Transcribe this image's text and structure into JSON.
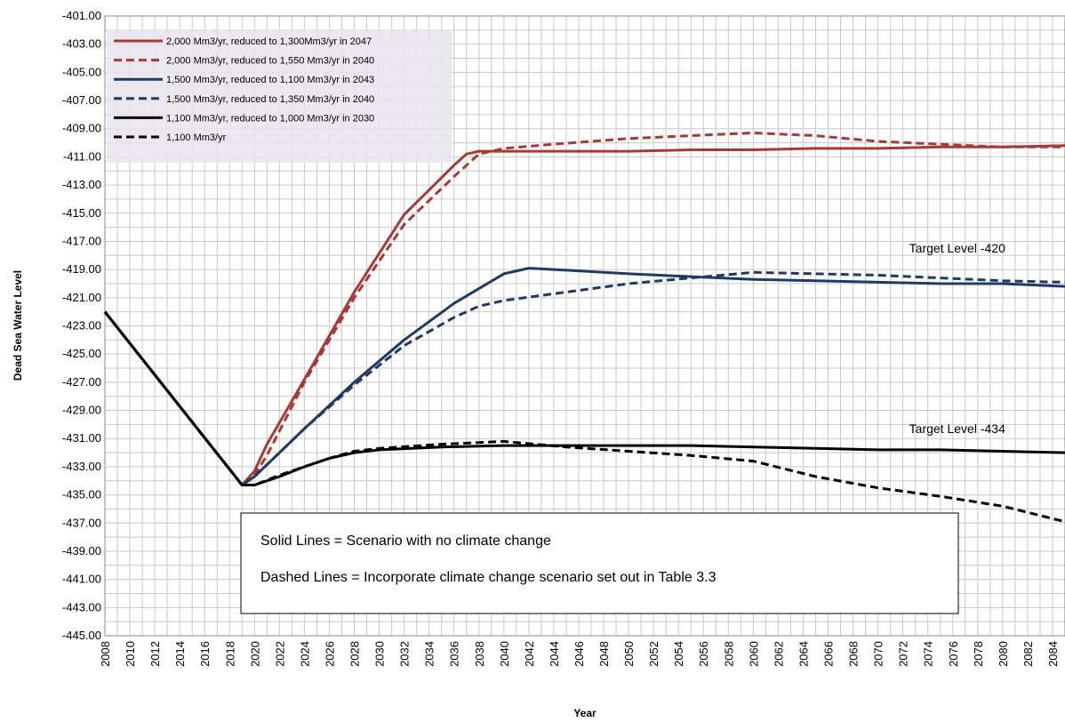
{
  "chart_data": {
    "type": "line",
    "title": "",
    "xlabel": "Year",
    "ylabel": "Dead Sea Water Level",
    "xlim": [
      2008,
      2085
    ],
    "ylim": [
      -445,
      -401
    ],
    "x_ticks": [
      2008,
      2010,
      2012,
      2014,
      2016,
      2018,
      2020,
      2022,
      2024,
      2026,
      2028,
      2030,
      2032,
      2034,
      2036,
      2038,
      2040,
      2042,
      2044,
      2046,
      2048,
      2050,
      2052,
      2054,
      2056,
      2058,
      2060,
      2062,
      2064,
      2066,
      2068,
      2070,
      2072,
      2074,
      2076,
      2078,
      2080,
      2082,
      2084
    ],
    "y_ticks": [
      "-401.00",
      "-403.00",
      "-405.00",
      "-407.00",
      "-409.00",
      "-411.00",
      "-413.00",
      "-415.00",
      "-417.00",
      "-419.00",
      "-421.00",
      "-423.00",
      "-425.00",
      "-427.00",
      "-429.00",
      "-431.00",
      "-433.00",
      "-435.00",
      "-437.00",
      "-439.00",
      "-441.00",
      "-443.00",
      "-445.00"
    ],
    "grid": true,
    "legend_position": "top-left",
    "series": [
      {
        "name": "2,000 Mm3/yr, reduced to 1,300Mm3/yr in 2047",
        "color": "#a83a36",
        "dash": "solid",
        "points": [
          [
            2008,
            -422
          ],
          [
            2019,
            -434.3
          ],
          [
            2020,
            -433.3
          ],
          [
            2021,
            -431.4
          ],
          [
            2024,
            -426.8
          ],
          [
            2028,
            -420.6
          ],
          [
            2032,
            -415.1
          ],
          [
            2036,
            -411.6
          ],
          [
            2037,
            -410.8
          ],
          [
            2038,
            -410.6
          ],
          [
            2040,
            -410.6
          ],
          [
            2046,
            -410.6
          ],
          [
            2050,
            -410.6
          ],
          [
            2055,
            -410.5
          ],
          [
            2060,
            -410.5
          ],
          [
            2065,
            -410.4
          ],
          [
            2070,
            -410.4
          ],
          [
            2075,
            -410.3
          ],
          [
            2080,
            -410.3
          ],
          [
            2085,
            -410.2
          ]
        ]
      },
      {
        "name": "2,000 Mm3/yr, reduced to 1,550 Mm3/yr in 2040",
        "color": "#a83a36",
        "dash": "dashed",
        "points": [
          [
            2008,
            -422
          ],
          [
            2019,
            -434.3
          ],
          [
            2020,
            -433.6
          ],
          [
            2021,
            -432.2
          ],
          [
            2024,
            -427.0
          ],
          [
            2028,
            -421.0
          ],
          [
            2032,
            -415.8
          ],
          [
            2036,
            -412.4
          ],
          [
            2038,
            -410.8
          ],
          [
            2040,
            -410.4
          ],
          [
            2044,
            -410.1
          ],
          [
            2050,
            -409.7
          ],
          [
            2055,
            -409.5
          ],
          [
            2060,
            -409.3
          ],
          [
            2065,
            -409.5
          ],
          [
            2070,
            -409.9
          ],
          [
            2075,
            -410.1
          ],
          [
            2080,
            -410.3
          ],
          [
            2085,
            -410.3
          ]
        ]
      },
      {
        "name": "1,500 Mm3/yr, reduced to 1,100 Mm3/yr in 2043",
        "color": "#1f3a64",
        "dash": "solid",
        "points": [
          [
            2008,
            -422
          ],
          [
            2019,
            -434.3
          ],
          [
            2020,
            -433.7
          ],
          [
            2022,
            -432.0
          ],
          [
            2024,
            -430.3
          ],
          [
            2028,
            -427.0
          ],
          [
            2032,
            -424.0
          ],
          [
            2036,
            -421.4
          ],
          [
            2040,
            -419.3
          ],
          [
            2042,
            -418.9
          ],
          [
            2044,
            -419.0
          ],
          [
            2050,
            -419.3
          ],
          [
            2055,
            -419.5
          ],
          [
            2060,
            -419.7
          ],
          [
            2065,
            -419.8
          ],
          [
            2070,
            -419.9
          ],
          [
            2075,
            -420.0
          ],
          [
            2080,
            -420.0
          ],
          [
            2085,
            -420.2
          ]
        ]
      },
      {
        "name": "1,500 Mm3/yr, reduced to 1,350 Mm3/yr in 2040",
        "color": "#1f3a64",
        "dash": "dashed",
        "points": [
          [
            2008,
            -422
          ],
          [
            2019,
            -434.3
          ],
          [
            2020,
            -433.7
          ],
          [
            2022,
            -432.0
          ],
          [
            2024,
            -430.3
          ],
          [
            2028,
            -427.2
          ],
          [
            2032,
            -424.4
          ],
          [
            2036,
            -422.4
          ],
          [
            2038,
            -421.6
          ],
          [
            2040,
            -421.2
          ],
          [
            2045,
            -420.6
          ],
          [
            2050,
            -420.0
          ],
          [
            2055,
            -419.6
          ],
          [
            2060,
            -419.2
          ],
          [
            2065,
            -419.3
          ],
          [
            2070,
            -419.4
          ],
          [
            2075,
            -419.6
          ],
          [
            2080,
            -419.8
          ],
          [
            2085,
            -419.9
          ]
        ]
      },
      {
        "name": "1,100 Mm3/yr, reduced to 1,000 Mm3/yr in 2030",
        "color": "#000000",
        "dash": "solid",
        "points": [
          [
            2008,
            -422
          ],
          [
            2019,
            -434.3
          ],
          [
            2020,
            -434.3
          ],
          [
            2022,
            -433.7
          ],
          [
            2024,
            -433.0
          ],
          [
            2026,
            -432.4
          ],
          [
            2028,
            -432.0
          ],
          [
            2030,
            -431.8
          ],
          [
            2035,
            -431.6
          ],
          [
            2040,
            -431.5
          ],
          [
            2045,
            -431.5
          ],
          [
            2050,
            -431.5
          ],
          [
            2055,
            -431.5
          ],
          [
            2060,
            -431.6
          ],
          [
            2065,
            -431.7
          ],
          [
            2070,
            -431.8
          ],
          [
            2075,
            -431.8
          ],
          [
            2080,
            -431.9
          ],
          [
            2085,
            -432.0
          ]
        ]
      },
      {
        "name": "1,100 Mm3/yr",
        "color": "#000000",
        "dash": "dashed",
        "points": [
          [
            2008,
            -422
          ],
          [
            2019,
            -434.3
          ],
          [
            2020,
            -434.3
          ],
          [
            2022,
            -433.6
          ],
          [
            2024,
            -433.0
          ],
          [
            2026,
            -432.4
          ],
          [
            2028,
            -431.9
          ],
          [
            2030,
            -431.7
          ],
          [
            2035,
            -431.4
          ],
          [
            2040,
            -431.2
          ],
          [
            2045,
            -431.6
          ],
          [
            2050,
            -431.9
          ],
          [
            2055,
            -432.2
          ],
          [
            2060,
            -432.6
          ],
          [
            2065,
            -433.7
          ],
          [
            2070,
            -434.5
          ],
          [
            2075,
            -435.1
          ],
          [
            2080,
            -435.8
          ],
          [
            2085,
            -436.9
          ]
        ]
      }
    ],
    "annotations": [
      {
        "text": "Target Level -420",
        "x": 2072.5,
        "y": -417.8
      },
      {
        "text": "Target Level -434",
        "x": 2072.5,
        "y": -430.6
      }
    ],
    "note_box": {
      "line1": "Solid Lines = Scenario with no climate change",
      "line2": "Dashed Lines = Incorporate climate change scenario set out in Table 3.3"
    }
  }
}
